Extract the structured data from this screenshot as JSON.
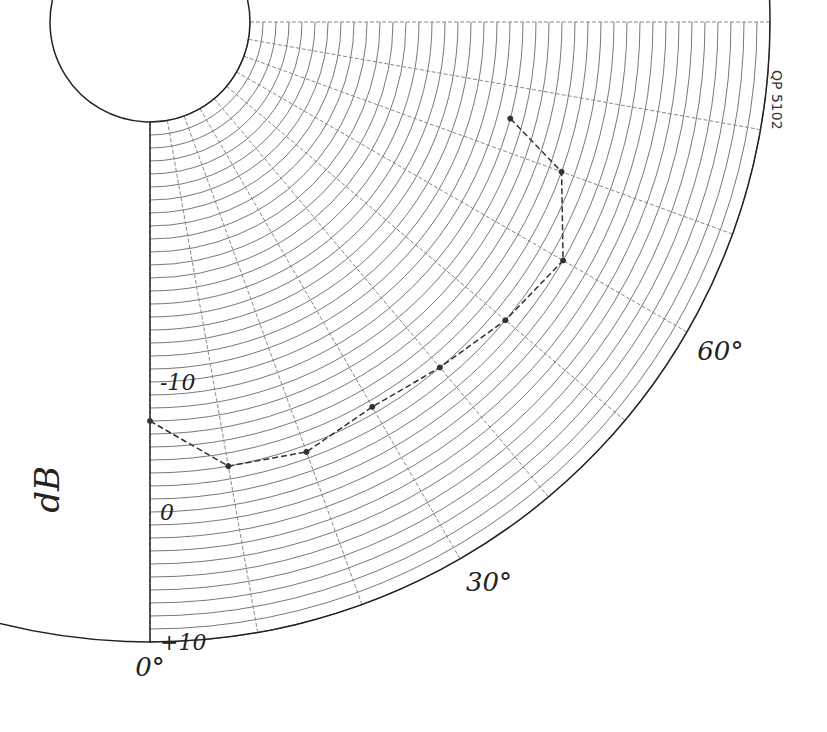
{
  "chart_data": {
    "type": "line",
    "ylabel": "dB",
    "annotations": [
      "QP 5102"
    ],
    "x": [
      0,
      10,
      20,
      30,
      40,
      50,
      60,
      70,
      75
    ],
    "values": [
      -7,
      -3,
      -2.5,
      -3.5,
      -3,
      -2,
      -1,
      -4,
      -9
    ],
    "xlim": [
      0,
      90
    ],
    "xticks": [
      {
        "value": 0,
        "label": "0°"
      },
      {
        "value": 30,
        "label": "30°"
      },
      {
        "value": 60,
        "label": "60°"
      }
    ],
    "ylim": [
      -30,
      10
    ],
    "yticks": [
      -10,
      0,
      {
        "value": 10,
        "label": "+10"
      }
    ],
    "grid": true,
    "color": "#333333",
    "marker": "circle",
    "line_style": "dashed"
  }
}
